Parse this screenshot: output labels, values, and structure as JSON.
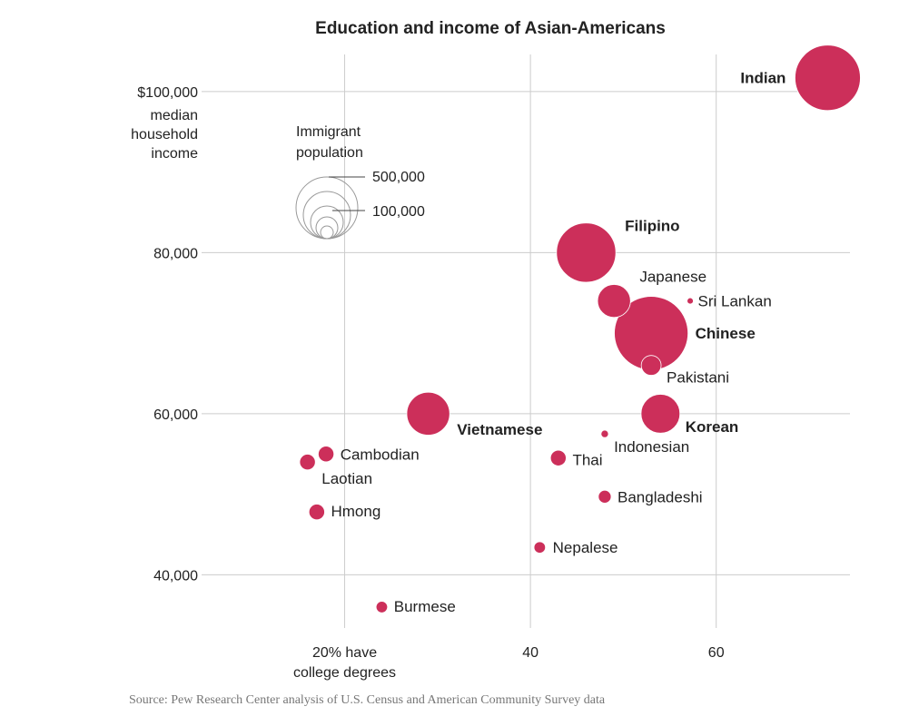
{
  "chart_data": {
    "type": "scatter",
    "title": "Education and income of Asian-Americans",
    "xlabel": "20% have college degrees",
    "ylabel": "$100,000 median household income",
    "x_ticks": [
      "20% have",
      "40",
      "60"
    ],
    "x_tick_values": [
      20,
      40,
      60
    ],
    "x_note_line2": "college degrees",
    "y_ticks": [
      "$100,000",
      "80,000",
      "60,000",
      "40,000"
    ],
    "y_tick_values": [
      100000,
      80000,
      60000,
      40000
    ],
    "y_note": [
      "median",
      "household",
      "income"
    ],
    "xlim": [
      4.6,
      74.4
    ],
    "ylim": [
      33400,
      104600
    ],
    "size_legend": {
      "title": [
        "Immigrant",
        "population"
      ],
      "labels": [
        "500,000",
        "100,000"
      ]
    },
    "points": [
      {
        "name": "Indian",
        "x": 72,
        "y": 101700,
        "population": 1300000,
        "bold": true
      },
      {
        "name": "Filipino",
        "x": 46,
        "y": 80000,
        "population": 1070000,
        "bold": true
      },
      {
        "name": "Japanese",
        "x": 49,
        "y": 74000,
        "population": 330000,
        "bold": false
      },
      {
        "name": "Sri Lankan",
        "x": 57.2,
        "y": 74000,
        "population": 12000,
        "bold": false
      },
      {
        "name": "Chinese",
        "x": 53,
        "y": 70000,
        "population": 1650000,
        "bold": true
      },
      {
        "name": "Pakistani",
        "x": 53,
        "y": 66000,
        "population": 120000,
        "bold": false
      },
      {
        "name": "Vietnamese",
        "x": 29,
        "y": 60000,
        "population": 560000,
        "bold": true
      },
      {
        "name": "Korean",
        "x": 54,
        "y": 60000,
        "population": 460000,
        "bold": true
      },
      {
        "name": "Indonesian",
        "x": 48,
        "y": 57500,
        "population": 17000,
        "bold": false
      },
      {
        "name": "Cambodian",
        "x": 18,
        "y": 55000,
        "population": 75000,
        "bold": false
      },
      {
        "name": "Laotian",
        "x": 16,
        "y": 54000,
        "population": 75000,
        "bold": false
      },
      {
        "name": "Thai",
        "x": 43,
        "y": 54500,
        "population": 75000,
        "bold": false
      },
      {
        "name": "Bangladeshi",
        "x": 48,
        "y": 49700,
        "population": 50000,
        "bold": false
      },
      {
        "name": "Hmong",
        "x": 17,
        "y": 47800,
        "population": 75000,
        "bold": false
      },
      {
        "name": "Nepalese",
        "x": 41,
        "y": 43400,
        "population": 40000,
        "bold": false
      },
      {
        "name": "Burmese",
        "x": 24,
        "y": 36000,
        "population": 40000,
        "bold": false
      }
    ]
  },
  "source": "Source: Pew Research Center analysis of U.S. Census and American Community Survey data",
  "colors": {
    "bubble": "#cc2f5a",
    "grid": "#cccccc"
  }
}
